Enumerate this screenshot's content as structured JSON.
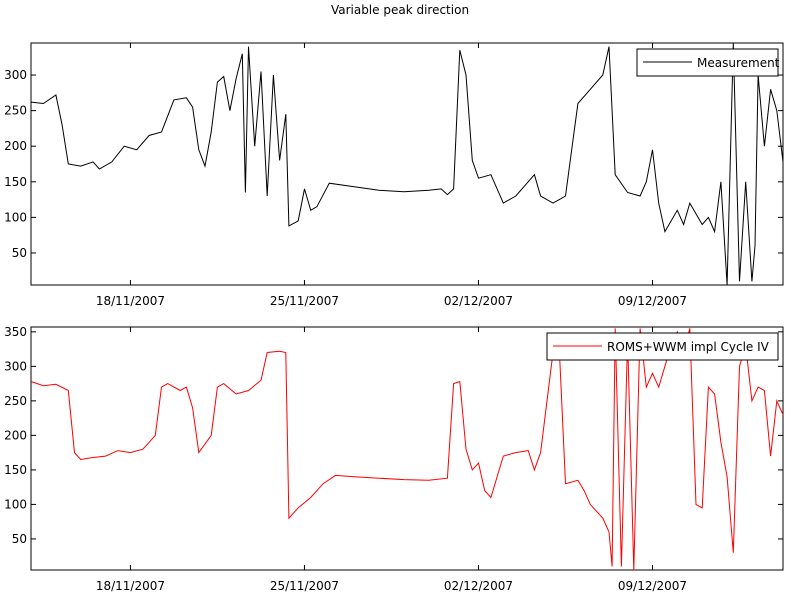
{
  "figure_title": "Variable peak direction",
  "chart_data": [
    {
      "type": "line",
      "title": "Variable peak direction",
      "xlabel": "",
      "ylabel": "",
      "x_axis": {
        "type": "date",
        "range": [
          "2007-11-14T00:00",
          "2007-12-14T06:00"
        ],
        "ticks": [
          "2007-11-18",
          "2007-11-25",
          "2007-12-02",
          "2007-12-09"
        ],
        "tick_labels": [
          "18/11/2007",
          "25/11/2007",
          "02/12/2007",
          "09/12/2007"
        ]
      },
      "ylim": [
        5,
        345
      ],
      "yticks": [
        50,
        100,
        150,
        200,
        250,
        300
      ],
      "grid": false,
      "legend": "top-right",
      "series": [
        {
          "name": "Measurement",
          "color": "#000000",
          "points": [
            [
              "2007-11-14T00:00",
              262
            ],
            [
              "2007-11-14T12:00",
              260
            ],
            [
              "2007-11-15T00:00",
              272
            ],
            [
              "2007-11-15T06:00",
              230
            ],
            [
              "2007-11-15T12:00",
              175
            ],
            [
              "2007-11-16T00:00",
              172
            ],
            [
              "2007-11-16T12:00",
              178
            ],
            [
              "2007-11-16T18:00",
              168
            ],
            [
              "2007-11-17T06:00",
              178
            ],
            [
              "2007-11-17T18:00",
              200
            ],
            [
              "2007-11-18T06:00",
              195
            ],
            [
              "2007-11-18T18:00",
              215
            ],
            [
              "2007-11-19T06:00",
              220
            ],
            [
              "2007-11-19T18:00",
              265
            ],
            [
              "2007-11-20T06:00",
              268
            ],
            [
              "2007-11-20T12:00",
              255
            ],
            [
              "2007-11-20T18:00",
              195
            ],
            [
              "2007-11-21T00:00",
              172
            ],
            [
              "2007-11-21T06:00",
              220
            ],
            [
              "2007-11-21T12:00",
              290
            ],
            [
              "2007-11-21T18:00",
              298
            ],
            [
              "2007-11-22T00:00",
              250
            ],
            [
              "2007-11-22T06:00",
              295
            ],
            [
              "2007-11-22T12:00",
              330
            ],
            [
              "2007-11-22T15:00",
              135
            ],
            [
              "2007-11-22T18:00",
              340
            ],
            [
              "2007-11-23T00:00",
              200
            ],
            [
              "2007-11-23T06:00",
              305
            ],
            [
              "2007-11-23T12:00",
              130
            ],
            [
              "2007-11-23T18:00",
              300
            ],
            [
              "2007-11-24T00:00",
              180
            ],
            [
              "2007-11-24T06:00",
              245
            ],
            [
              "2007-11-24T09:00",
              88
            ],
            [
              "2007-11-24T18:00",
              95
            ],
            [
              "2007-11-25T00:00",
              140
            ],
            [
              "2007-11-25T06:00",
              110
            ],
            [
              "2007-11-25T12:00",
              115
            ],
            [
              "2007-11-26T00:00",
              148
            ],
            [
              "2007-11-27T00:00",
              143
            ],
            [
              "2007-11-28T00:00",
              138
            ],
            [
              "2007-11-29T00:00",
              136
            ],
            [
              "2007-11-30T00:00",
              138
            ],
            [
              "2007-11-30T12:00",
              140
            ],
            [
              "2007-11-30T18:00",
              132
            ],
            [
              "2007-12-01T00:00",
              140
            ],
            [
              "2007-12-01T06:00",
              335
            ],
            [
              "2007-12-01T12:00",
              300
            ],
            [
              "2007-12-01T18:00",
              180
            ],
            [
              "2007-12-02T00:00",
              155
            ],
            [
              "2007-12-02T12:00",
              160
            ],
            [
              "2007-12-03T00:00",
              120
            ],
            [
              "2007-12-03T12:00",
              130
            ],
            [
              "2007-12-04T00:00",
              150
            ],
            [
              "2007-12-04T06:00",
              160
            ],
            [
              "2007-12-04T12:00",
              130
            ],
            [
              "2007-12-05T00:00",
              120
            ],
            [
              "2007-12-05T06:00",
              125
            ],
            [
              "2007-12-05T12:00",
              130
            ],
            [
              "2007-12-06T00:00",
              260
            ],
            [
              "2007-12-06T12:00",
              280
            ],
            [
              "2007-12-07T00:00",
              300
            ],
            [
              "2007-12-07T06:00",
              340
            ],
            [
              "2007-12-07T12:00",
              160
            ],
            [
              "2007-12-08T00:00",
              135
            ],
            [
              "2007-12-08T12:00",
              130
            ],
            [
              "2007-12-08T18:00",
              150
            ],
            [
              "2007-12-09T00:00",
              195
            ],
            [
              "2007-12-09T06:00",
              120
            ],
            [
              "2007-12-09T12:00",
              80
            ],
            [
              "2007-12-10T00:00",
              110
            ],
            [
              "2007-12-10T06:00",
              90
            ],
            [
              "2007-12-10T12:00",
              120
            ],
            [
              "2007-12-11T00:00",
              90
            ],
            [
              "2007-12-11T06:00",
              100
            ],
            [
              "2007-12-11T12:00",
              80
            ],
            [
              "2007-12-11T18:00",
              150
            ],
            [
              "2007-12-12T00:00",
              5
            ],
            [
              "2007-12-12T06:00",
              345
            ],
            [
              "2007-12-12T12:00",
              10
            ],
            [
              "2007-12-12T18:00",
              150
            ],
            [
              "2007-12-13T00:00",
              10
            ],
            [
              "2007-12-13T03:00",
              60
            ],
            [
              "2007-12-13T06:00",
              300
            ],
            [
              "2007-12-13T12:00",
              200
            ],
            [
              "2007-12-13T18:00",
              280
            ],
            [
              "2007-12-14T00:00",
              250
            ],
            [
              "2007-12-14T06:00",
              178
            ]
          ]
        }
      ]
    },
    {
      "type": "line",
      "title": "",
      "xlabel": "",
      "ylabel": "",
      "x_axis": {
        "type": "date",
        "range": [
          "2007-11-14T00:00",
          "2007-12-14T06:00"
        ],
        "ticks": [
          "2007-11-18",
          "2007-11-25",
          "2007-12-02",
          "2007-12-09"
        ],
        "tick_labels": [
          "18/11/2007",
          "25/11/2007",
          "02/12/2007",
          "09/12/2007"
        ]
      },
      "ylim": [
        5,
        357
      ],
      "yticks": [
        50,
        100,
        150,
        200,
        250,
        300,
        350
      ],
      "grid": false,
      "legend": "top-right",
      "series": [
        {
          "name": "ROMS+WWM impl Cycle IV",
          "color": "#ff0000",
          "points": [
            [
              "2007-11-14T00:00",
              278
            ],
            [
              "2007-11-14T12:00",
              272
            ],
            [
              "2007-11-15T00:00",
              274
            ],
            [
              "2007-11-15T12:00",
              265
            ],
            [
              "2007-11-15T18:00",
              175
            ],
            [
              "2007-11-16T00:00",
              165
            ],
            [
              "2007-11-16T12:00",
              168
            ],
            [
              "2007-11-17T00:00",
              170
            ],
            [
              "2007-11-17T12:00",
              178
            ],
            [
              "2007-11-18T00:00",
              175
            ],
            [
              "2007-11-18T12:00",
              180
            ],
            [
              "2007-11-19T00:00",
              200
            ],
            [
              "2007-11-19T06:00",
              270
            ],
            [
              "2007-11-19T12:00",
              275
            ],
            [
              "2007-11-20T00:00",
              265
            ],
            [
              "2007-11-20T06:00",
              270
            ],
            [
              "2007-11-20T12:00",
              240
            ],
            [
              "2007-11-20T18:00",
              175
            ],
            [
              "2007-11-21T06:00",
              200
            ],
            [
              "2007-11-21T12:00",
              270
            ],
            [
              "2007-11-21T18:00",
              275
            ],
            [
              "2007-11-22T06:00",
              260
            ],
            [
              "2007-11-22T18:00",
              265
            ],
            [
              "2007-11-23T06:00",
              280
            ],
            [
              "2007-11-23T12:00",
              320
            ],
            [
              "2007-11-24T00:00",
              322
            ],
            [
              "2007-11-24T06:00",
              320
            ],
            [
              "2007-11-24T09:00",
              80
            ],
            [
              "2007-11-24T18:00",
              95
            ],
            [
              "2007-11-25T06:00",
              110
            ],
            [
              "2007-11-25T18:00",
              130
            ],
            [
              "2007-11-26T06:00",
              142
            ],
            [
              "2007-11-27T00:00",
              140
            ],
            [
              "2007-11-28T00:00",
              138
            ],
            [
              "2007-11-29T00:00",
              136
            ],
            [
              "2007-11-30T00:00",
              135
            ],
            [
              "2007-11-30T18:00",
              138
            ],
            [
              "2007-12-01T00:00",
              275
            ],
            [
              "2007-12-01T06:00",
              278
            ],
            [
              "2007-12-01T12:00",
              180
            ],
            [
              "2007-12-01T18:00",
              150
            ],
            [
              "2007-12-02T00:00",
              160
            ],
            [
              "2007-12-02T06:00",
              120
            ],
            [
              "2007-12-02T12:00",
              110
            ],
            [
              "2007-12-03T00:00",
              170
            ],
            [
              "2007-12-03T12:00",
              175
            ],
            [
              "2007-12-04T00:00",
              178
            ],
            [
              "2007-12-04T06:00",
              150
            ],
            [
              "2007-12-04T12:00",
              175
            ],
            [
              "2007-12-05T00:00",
              320
            ],
            [
              "2007-12-05T06:00",
              325
            ],
            [
              "2007-12-05T12:00",
              130
            ],
            [
              "2007-12-06T00:00",
              135
            ],
            [
              "2007-12-06T06:00",
              120
            ],
            [
              "2007-12-06T12:00",
              100
            ],
            [
              "2007-12-07T00:00",
              80
            ],
            [
              "2007-12-07T06:00",
              60
            ],
            [
              "2007-12-07T09:00",
              10
            ],
            [
              "2007-12-07T12:00",
              355
            ],
            [
              "2007-12-07T18:00",
              10
            ],
            [
              "2007-12-08T00:00",
              340
            ],
            [
              "2007-12-08T06:00",
              5
            ],
            [
              "2007-12-08T12:00",
              355
            ],
            [
              "2007-12-08T18:00",
              270
            ],
            [
              "2007-12-09T00:00",
              290
            ],
            [
              "2007-12-09T06:00",
              270
            ],
            [
              "2007-12-09T12:00",
              300
            ],
            [
              "2007-12-09T18:00",
              330
            ],
            [
              "2007-12-10T00:00",
              350
            ],
            [
              "2007-12-10T06:00",
              320
            ],
            [
              "2007-12-10T12:00",
              355
            ],
            [
              "2007-12-10T18:00",
              100
            ],
            [
              "2007-12-11T00:00",
              95
            ],
            [
              "2007-12-11T06:00",
              270
            ],
            [
              "2007-12-11T12:00",
              260
            ],
            [
              "2007-12-11T18:00",
              190
            ],
            [
              "2007-12-12T00:00",
              140
            ],
            [
              "2007-12-12T06:00",
              30
            ],
            [
              "2007-12-12T12:00",
              300
            ],
            [
              "2007-12-12T18:00",
              330
            ],
            [
              "2007-12-13T00:00",
              250
            ],
            [
              "2007-12-13T06:00",
              270
            ],
            [
              "2007-12-13T12:00",
              265
            ],
            [
              "2007-12-13T18:00",
              170
            ],
            [
              "2007-12-14T00:00",
              250
            ],
            [
              "2007-12-14T06:00",
              230
            ]
          ]
        }
      ]
    }
  ]
}
